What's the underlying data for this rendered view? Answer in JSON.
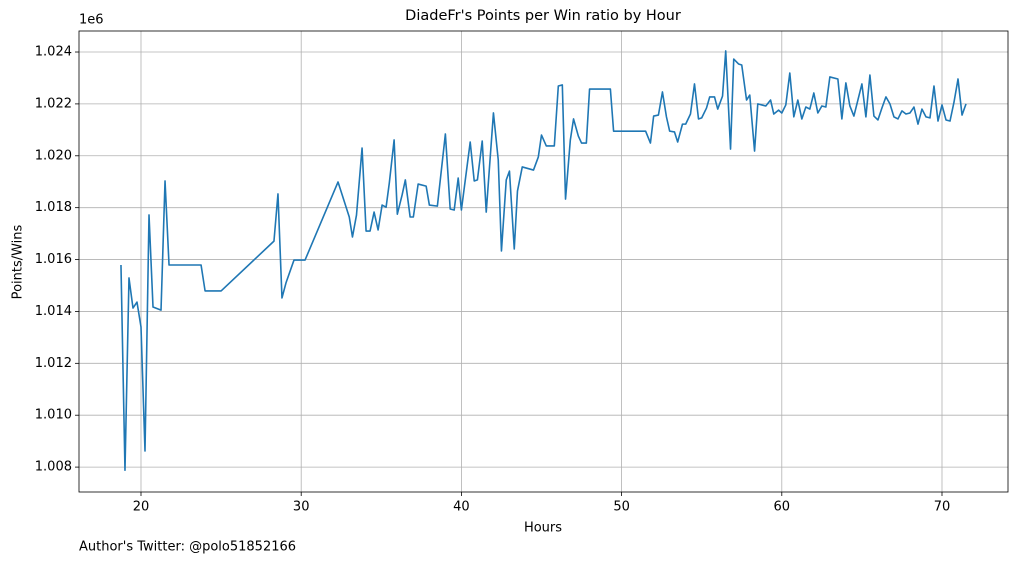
{
  "chart_data": {
    "type": "line",
    "title": "DiadeFr's Points per Win ratio by Hour",
    "xlabel": "Hours",
    "ylabel": "Points/Wins",
    "y_offset_label": "1e6",
    "footer": "Author's Twitter: @polo51852166",
    "xlim": [
      16.13,
      74.12
    ],
    "ylim": [
      1.00704,
      1.02481
    ],
    "xticks": [
      20,
      30,
      40,
      50,
      60,
      70
    ],
    "yticks": [
      1.008,
      {
        "value": 1.01,
        "label": "1.010"
      },
      1.012,
      1.014,
      1.016,
      1.018,
      {
        "value": 1.02,
        "label": "1.020"
      },
      1.022,
      1.024
    ],
    "grid": true,
    "series": [
      {
        "color": "#1f77b4",
        "x": [
          18.75,
          19.0,
          19.25,
          19.5,
          19.75,
          20.0,
          20.25,
          20.5,
          20.75,
          21.25,
          21.5,
          21.75,
          23.75,
          24.0,
          25.0,
          28.3,
          28.55,
          28.8,
          29.05,
          29.55,
          30.24,
          32.3,
          33.0,
          33.2,
          33.45,
          33.8,
          34.05,
          34.3,
          34.55,
          34.8,
          35.05,
          35.3,
          35.5,
          35.8,
          36.0,
          36.3,
          36.5,
          36.8,
          37.0,
          37.3,
          37.8,
          38.0,
          38.5,
          39.0,
          39.3,
          39.55,
          39.8,
          40.0,
          40.55,
          40.8,
          41.0,
          41.3,
          41.55,
          42.0,
          42.3,
          42.5,
          42.8,
          43.0,
          43.3,
          43.5,
          43.8,
          44.5,
          44.8,
          45.0,
          45.3,
          45.8,
          46.05,
          46.3,
          46.5,
          46.8,
          47.0,
          47.3,
          47.5,
          47.8,
          48.0,
          49.3,
          49.5,
          51.5,
          51.8,
          52.0,
          52.3,
          52.55,
          52.8,
          53.0,
          53.3,
          53.5,
          53.8,
          54.0,
          54.3,
          54.55,
          54.8,
          55.0,
          55.3,
          55.5,
          55.8,
          56.0,
          56.3,
          56.5,
          56.8,
          57.0,
          57.3,
          57.5,
          57.8,
          58.0,
          58.3,
          58.5,
          59.0,
          59.3,
          59.5,
          59.8,
          60.0,
          60.25,
          60.5,
          60.75,
          61.0,
          61.25,
          61.5,
          61.75,
          62.0,
          62.25,
          62.5,
          62.75,
          63.0,
          63.5,
          63.75,
          64.0,
          64.25,
          64.5,
          64.75,
          65.0,
          65.25,
          65.5,
          65.75,
          66.0,
          66.25,
          66.5,
          66.75,
          67.0,
          67.25,
          67.5,
          67.75,
          68.0,
          68.25,
          68.5,
          68.75,
          69.0,
          69.25,
          69.5,
          69.75,
          70.0,
          70.25,
          70.5,
          70.75,
          71.0,
          71.25,
          71.5
        ],
        "values": [
          1.01579,
          1.00788,
          1.01529,
          1.01413,
          1.01436,
          1.0134,
          1.00862,
          1.01772,
          1.01417,
          1.01405,
          1.01903,
          1.01579,
          1.01579,
          1.01479,
          1.01479,
          1.01671,
          1.01853,
          1.01452,
          1.0151,
          1.01598,
          1.01598,
          1.01899,
          1.01764,
          1.01687,
          1.01771,
          1.0203,
          1.0171,
          1.0171,
          1.01783,
          1.01714,
          1.0181,
          1.01802,
          1.01895,
          1.02061,
          1.01775,
          1.01849,
          1.01907,
          1.01764,
          1.01764,
          1.01891,
          1.01883,
          1.0181,
          1.01806,
          1.02084,
          1.01795,
          1.01791,
          1.01914,
          1.01791,
          1.02053,
          1.01903,
          1.01907,
          1.02057,
          1.01783,
          1.02165,
          1.01984,
          1.01633,
          1.01907,
          1.01941,
          1.01641,
          1.01864,
          1.01957,
          1.01945,
          1.01995,
          1.0208,
          1.02038,
          1.02038,
          1.02269,
          1.02273,
          1.01833,
          1.02061,
          1.02142,
          1.02076,
          1.02049,
          1.02049,
          1.02257,
          1.02257,
          1.02095,
          1.02095,
          1.02049,
          1.02153,
          1.02157,
          1.02246,
          1.0215,
          1.02095,
          1.02092,
          1.02053,
          1.02122,
          1.02122,
          1.02161,
          1.02277,
          1.02142,
          1.02146,
          1.02184,
          1.02227,
          1.02227,
          1.0218,
          1.0223,
          1.02404,
          1.02026,
          1.02373,
          1.02354,
          1.0235,
          1.02215,
          1.02234,
          1.02018,
          1.022,
          1.02192,
          1.02215,
          1.02161,
          1.02176,
          1.02165,
          1.02196,
          1.02319,
          1.0215,
          1.02215,
          1.02142,
          1.02188,
          1.0218,
          1.02242,
          1.02165,
          1.02192,
          1.02188,
          1.02304,
          1.02296,
          1.02142,
          1.02281,
          1.02192,
          1.02153,
          1.02215,
          1.02277,
          1.0215,
          1.02311,
          1.02153,
          1.02138,
          1.02184,
          1.02227,
          1.022,
          1.0215,
          1.02142,
          1.02173,
          1.02161,
          1.02165,
          1.02188,
          1.02122,
          1.0218,
          1.0215,
          1.02146,
          1.02269,
          1.02134,
          1.02196,
          1.02138,
          1.02134,
          1.02207,
          1.02296,
          1.02157,
          1.022
        ]
      }
    ]
  }
}
